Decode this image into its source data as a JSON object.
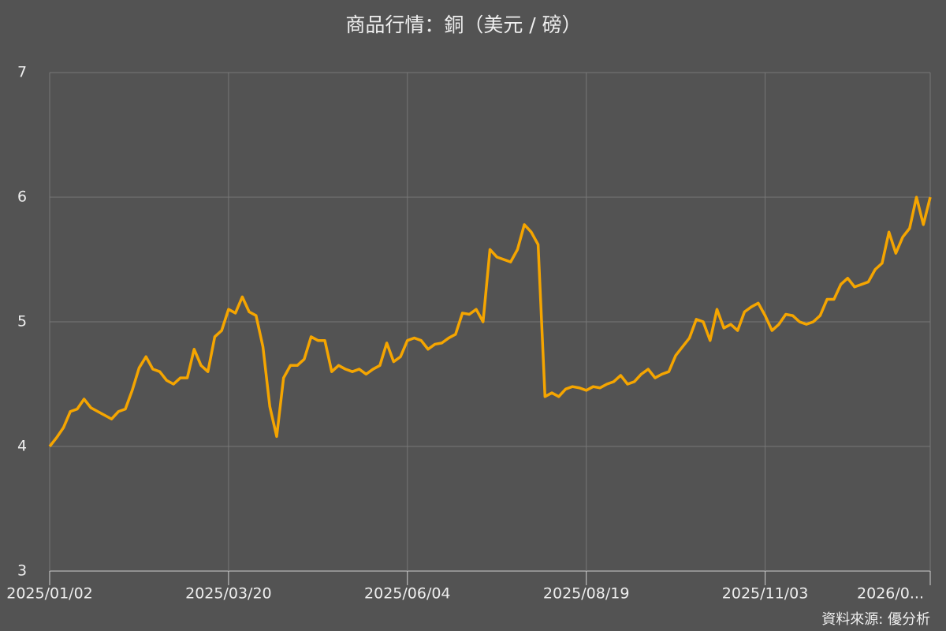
{
  "chart_data": {
    "type": "line",
    "title": "商品行情：銅（美元 / 磅）",
    "source": "資料來源: 優分析",
    "categories": [
      "2025/01/02",
      null,
      null,
      null,
      null,
      null,
      null,
      null,
      null,
      null,
      null,
      null,
      null,
      null,
      null,
      null,
      null,
      null,
      null,
      null,
      null,
      null,
      null,
      null,
      null,
      null,
      "2025/03/20",
      null,
      null,
      null,
      null,
      null,
      null,
      null,
      null,
      null,
      null,
      null,
      null,
      null,
      null,
      null,
      null,
      null,
      null,
      null,
      null,
      null,
      null,
      null,
      null,
      null,
      "2025/06/04",
      null,
      null,
      null,
      null,
      null,
      null,
      null,
      null,
      null,
      null,
      null,
      null,
      null,
      null,
      null,
      null,
      null,
      null,
      null,
      null,
      null,
      null,
      null,
      null,
      null,
      "2025/08/19",
      null,
      null,
      null,
      null,
      null,
      null,
      null,
      null,
      null,
      null,
      null,
      null,
      null,
      null,
      null,
      null,
      null,
      null,
      null,
      null,
      null,
      null,
      null,
      null,
      null,
      "2025/11/03",
      null,
      null,
      null,
      null,
      null,
      null,
      null,
      null,
      null,
      null,
      null,
      null,
      null,
      null,
      null,
      null,
      null,
      null,
      null,
      null,
      null,
      null,
      null,
      "2026/0..."
    ],
    "series": [
      {
        "name": "銅",
        "color": "#f5a500",
        "values": [
          4.0,
          4.07,
          4.15,
          4.28,
          4.3,
          4.38,
          4.31,
          4.28,
          4.25,
          4.22,
          4.28,
          4.3,
          4.45,
          4.63,
          4.72,
          4.62,
          4.6,
          4.53,
          4.5,
          4.55,
          4.55,
          4.78,
          4.65,
          4.6,
          4.88,
          4.93,
          5.1,
          5.07,
          5.2,
          5.08,
          5.05,
          4.8,
          4.32,
          4.08,
          4.55,
          4.65,
          4.65,
          4.7,
          4.88,
          4.85,
          4.85,
          4.6,
          4.65,
          4.62,
          4.6,
          4.62,
          4.58,
          4.62,
          4.65,
          4.83,
          4.68,
          4.72,
          4.85,
          4.87,
          4.85,
          4.78,
          4.82,
          4.83,
          4.87,
          4.9,
          5.07,
          5.06,
          5.1,
          5.0,
          5.58,
          5.52,
          5.5,
          5.48,
          5.58,
          5.78,
          5.72,
          5.62,
          4.4,
          4.43,
          4.4,
          4.46,
          4.48,
          4.47,
          4.45,
          4.48,
          4.47,
          4.5,
          4.52,
          4.57,
          4.5,
          4.52,
          4.58,
          4.62,
          4.55,
          4.58,
          4.6,
          4.73,
          4.8,
          4.87,
          5.02,
          5.0,
          4.85,
          5.1,
          4.95,
          4.98,
          4.93,
          5.08,
          5.12,
          5.15,
          5.05,
          4.93,
          4.98,
          5.06,
          5.05,
          5.0,
          4.98,
          5.0,
          5.05,
          5.18,
          5.18,
          5.3,
          5.35,
          5.28,
          5.3,
          5.32,
          5.42,
          5.47,
          5.72,
          5.55,
          5.68,
          5.75,
          6.0,
          5.78,
          6.0
        ]
      }
    ],
    "ylim": [
      3,
      7
    ],
    "yticks": [
      3,
      4,
      5,
      6,
      7
    ],
    "grid": true
  }
}
